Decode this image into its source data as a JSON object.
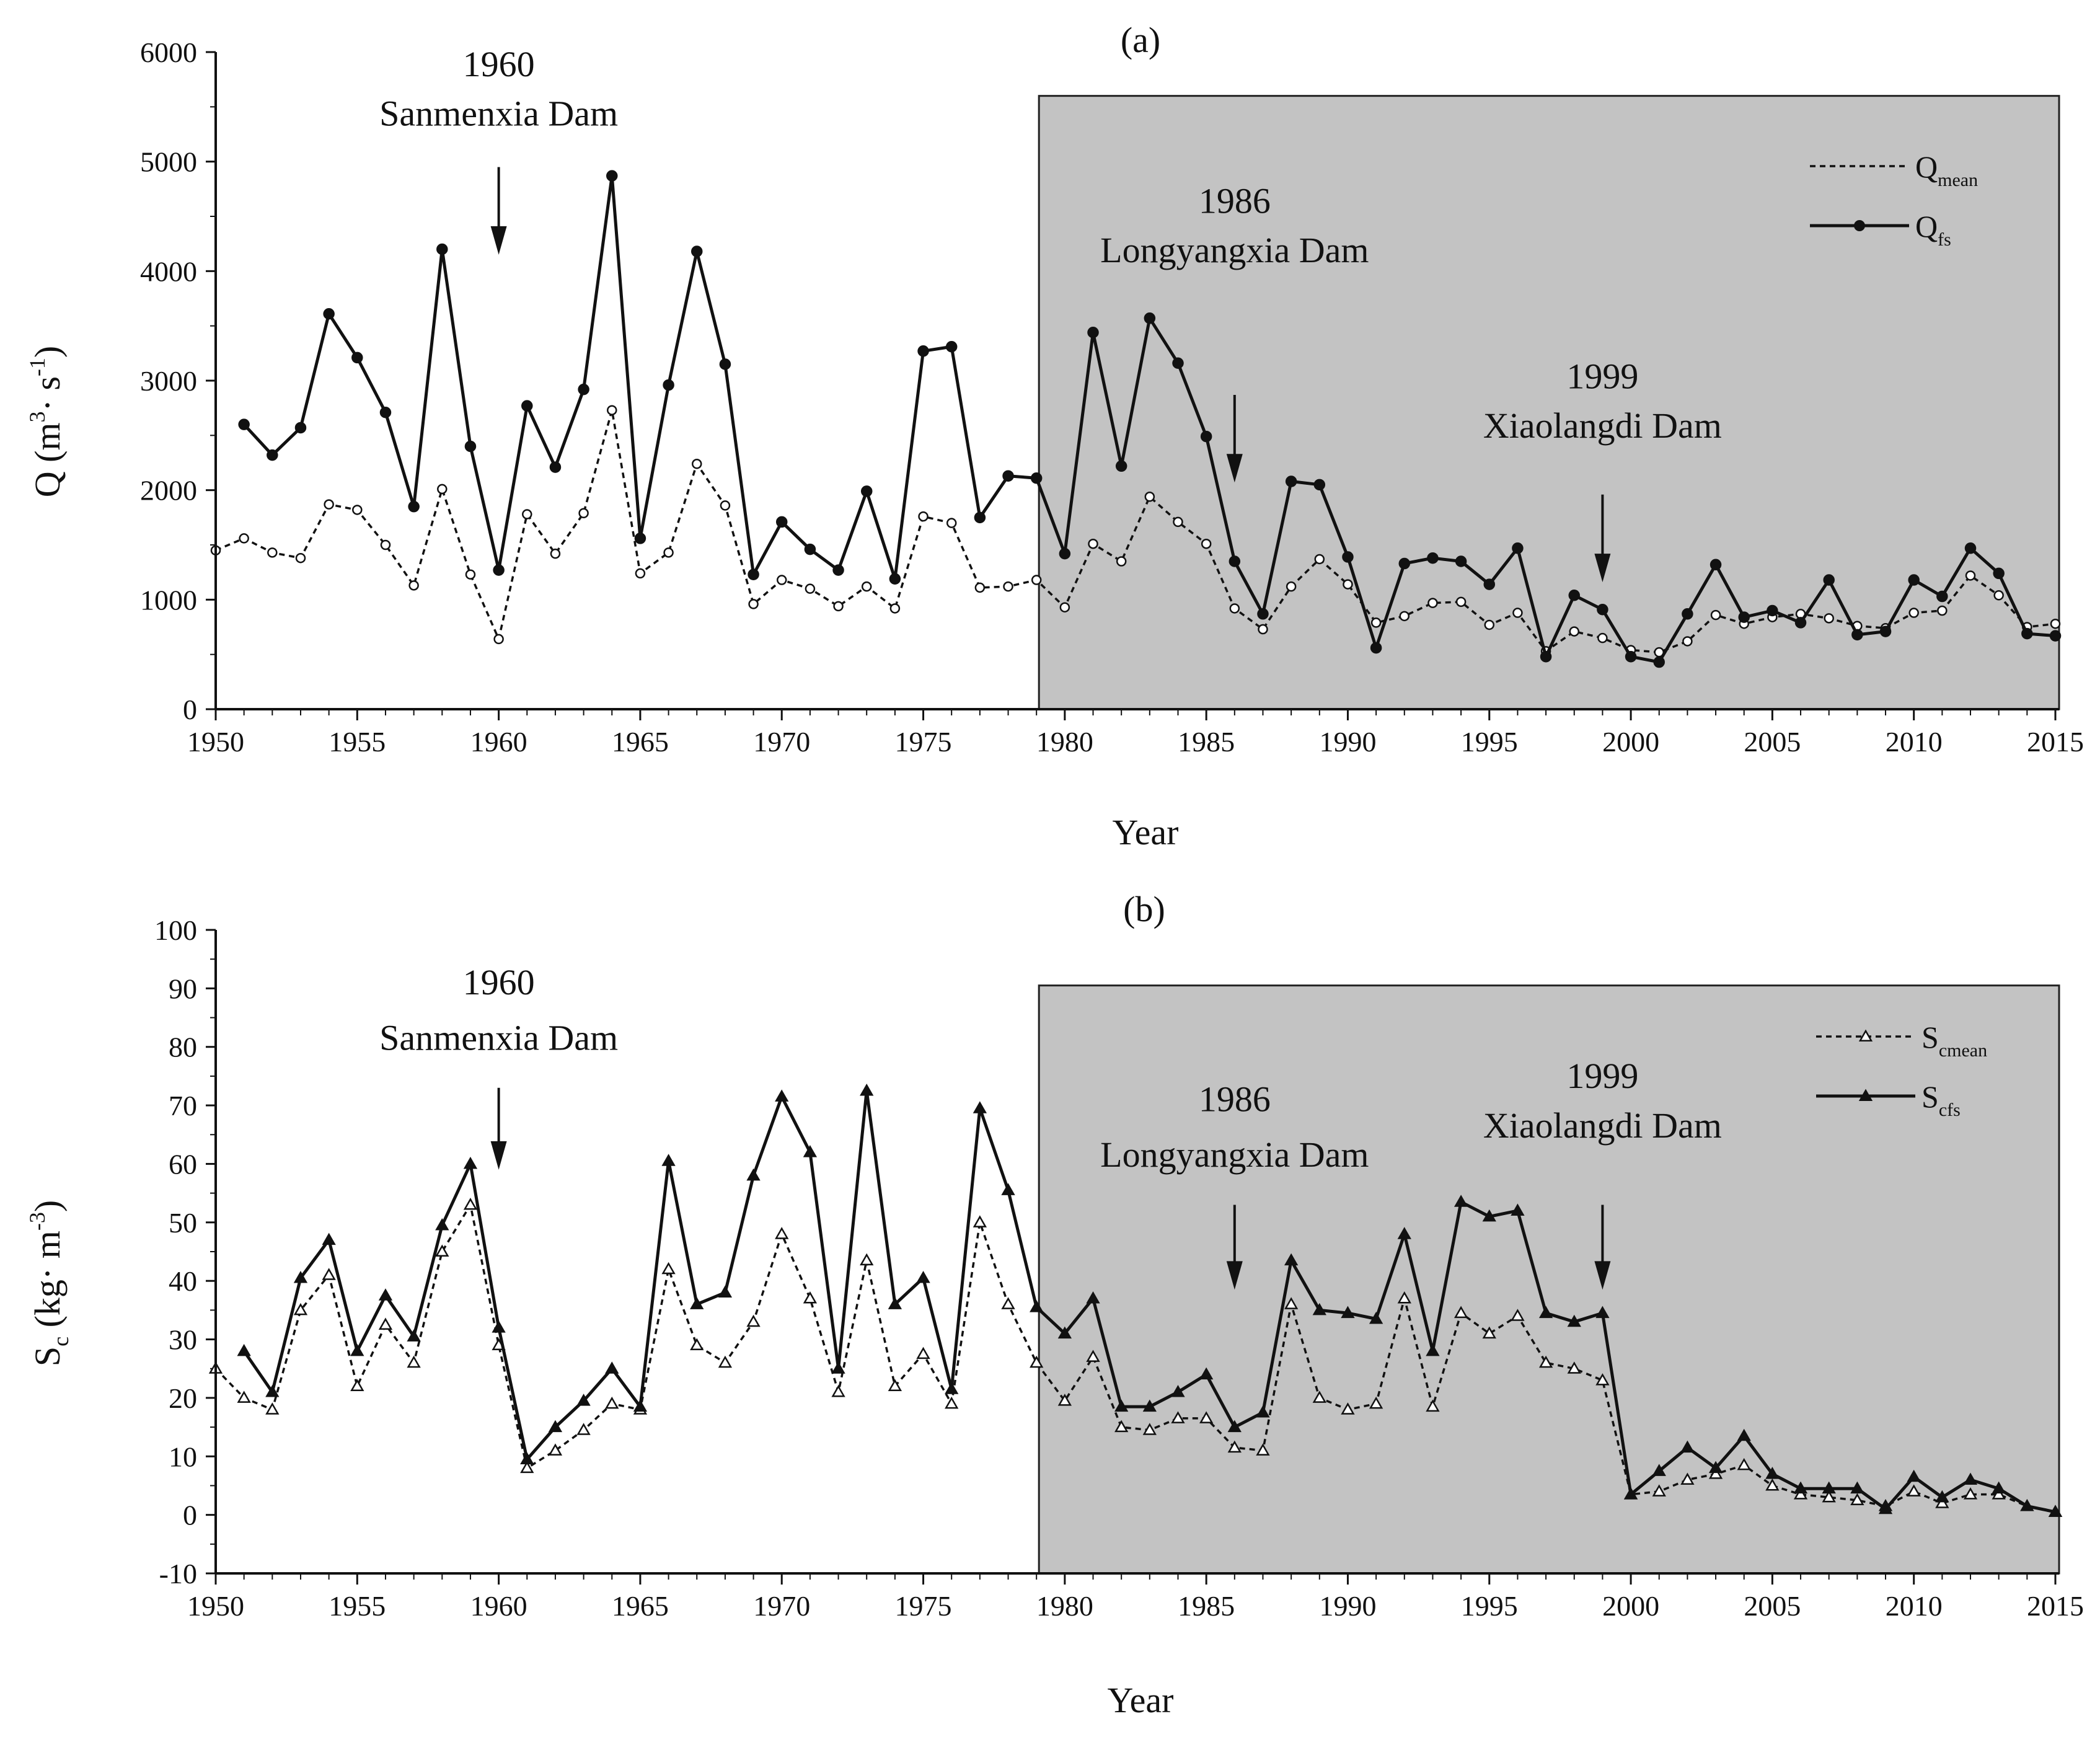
{
  "chart_data": [
    {
      "type": "line",
      "panel_label": "(a)",
      "title": "",
      "xlabel": "Year",
      "ylabel": "Q (m3· s-1)",
      "ylabel_parts": {
        "base": "Q (m",
        "sup1": "3",
        "mid": "· s",
        "sup2": "-1",
        "end": ")"
      },
      "xlim": [
        1950,
        2015
      ],
      "ylim": [
        0,
        6000
      ],
      "x_ticks": [
        1950,
        1955,
        1960,
        1965,
        1970,
        1975,
        1980,
        1985,
        1990,
        1995,
        2000,
        2005,
        2010,
        2015
      ],
      "y_ticks": [
        0,
        1000,
        2000,
        3000,
        4000,
        5000,
        6000
      ],
      "shaded_region": {
        "x_start": 1979,
        "x_end": 2015,
        "y_top": 5600
      },
      "legend": {
        "position": "top-right",
        "entries": [
          {
            "name": "Q",
            "sub": "mean",
            "style": "dotted-open-circle"
          },
          {
            "name": "Q",
            "sub": "fs",
            "style": "solid-filled-circle"
          }
        ]
      },
      "annotations": [
        {
          "year_label": "1960",
          "name": "Sanmenxia Dam",
          "x": 1960,
          "arrow_from": 4950,
          "arrow_to": 4150,
          "text_y1": 5780,
          "text_y2": 5330
        },
        {
          "year_label": "1986",
          "name": "Longyangxia Dam",
          "x": 1986,
          "arrow_from": 2870,
          "arrow_to": 2070,
          "text_y1": 4530,
          "text_y2": 4080
        },
        {
          "year_label": "1999",
          "name": "Xiaolangdi Dam",
          "x": 1999,
          "arrow_from": 1960,
          "arrow_to": 1160,
          "text_y1": 2930,
          "text_y2": 2480
        }
      ],
      "series": [
        {
          "name": "Qmean",
          "style": "dotted-open-circle",
          "x": [
            1950,
            1951,
            1952,
            1953,
            1954,
            1955,
            1956,
            1957,
            1958,
            1959,
            1960,
            1961,
            1962,
            1963,
            1964,
            1965,
            1966,
            1967,
            1968,
            1969,
            1970,
            1971,
            1972,
            1973,
            1974,
            1975,
            1976,
            1977,
            1978,
            1979,
            1980,
            1981,
            1982,
            1983,
            1984,
            1985,
            1986,
            1987,
            1988,
            1989,
            1990,
            1991,
            1992,
            1993,
            1994,
            1995,
            1996,
            1997,
            1998,
            1999,
            2000,
            2001,
            2002,
            2003,
            2004,
            2005,
            2006,
            2007,
            2008,
            2009,
            2010,
            2011,
            2012,
            2013,
            2014,
            2015
          ],
          "values": [
            1450,
            1560,
            1430,
            1380,
            1870,
            1820,
            1500,
            1130,
            2010,
            1230,
            640,
            1780,
            1420,
            1790,
            2730,
            1240,
            1430,
            2240,
            1860,
            960,
            1180,
            1100,
            940,
            1120,
            920,
            1760,
            1700,
            1110,
            1120,
            1180,
            930,
            1510,
            1350,
            1940,
            1710,
            1510,
            920,
            730,
            1120,
            1370,
            1140,
            790,
            850,
            970,
            980,
            770,
            880,
            530,
            710,
            650,
            540,
            520,
            620,
            860,
            780,
            840,
            870,
            830,
            760,
            740,
            880,
            900,
            1220,
            1040,
            750,
            780
          ]
        },
        {
          "name": "Qfs",
          "style": "solid-filled-circle",
          "x": [
            1951,
            1952,
            1953,
            1954,
            1955,
            1956,
            1957,
            1958,
            1959,
            1960,
            1961,
            1962,
            1963,
            1964,
            1965,
            1966,
            1967,
            1968,
            1969,
            1970,
            1971,
            1972,
            1973,
            1974,
            1975,
            1976,
            1977,
            1978,
            1979,
            1980,
            1981,
            1982,
            1983,
            1984,
            1985,
            1986,
            1987,
            1988,
            1989,
            1990,
            1991,
            1992,
            1993,
            1994,
            1995,
            1996,
            1997,
            1998,
            1999,
            2000,
            2001,
            2002,
            2003,
            2004,
            2005,
            2006,
            2007,
            2008,
            2009,
            2010,
            2011,
            2012,
            2013,
            2014,
            2015
          ],
          "values": [
            2600,
            2320,
            2570,
            3610,
            3210,
            2710,
            1850,
            4200,
            2400,
            1270,
            2770,
            2210,
            2920,
            4870,
            1560,
            2960,
            4180,
            3150,
            1230,
            1710,
            1460,
            1270,
            1990,
            1190,
            3270,
            3310,
            1750,
            2130,
            2110,
            1420,
            3440,
            2220,
            3570,
            3160,
            2490,
            1350,
            870,
            2080,
            2050,
            1390,
            560,
            1330,
            1380,
            1350,
            1140,
            1470,
            480,
            1040,
            910,
            480,
            430,
            870,
            1320,
            840,
            900,
            790,
            1180,
            680,
            710,
            1180,
            1030,
            1470,
            1240,
            690,
            670
          ]
        }
      ]
    },
    {
      "type": "line",
      "panel_label": "(b)",
      "title": "",
      "xlabel": "Year",
      "ylabel": "Sc (kg· m-3)",
      "ylabel_parts": {
        "base": "S",
        "sub": "c",
        "mid": " (kg· m",
        "sup": "-3",
        "end": ")"
      },
      "xlim": [
        1950,
        2015
      ],
      "ylim": [
        -10,
        100
      ],
      "x_ticks": [
        1950,
        1955,
        1960,
        1965,
        1970,
        1975,
        1980,
        1985,
        1990,
        1995,
        2000,
        2005,
        2010,
        2015
      ],
      "y_ticks": [
        -10,
        0,
        10,
        20,
        30,
        40,
        50,
        60,
        70,
        80,
        90,
        100
      ],
      "shaded_region": {
        "x_start": 1979,
        "x_end": 2015,
        "y_top": 90.5
      },
      "legend": {
        "position": "top-right",
        "entries": [
          {
            "name": "S",
            "sub": "cmean",
            "style": "dotted-open-triangle"
          },
          {
            "name": "S",
            "sub": "cfs",
            "style": "solid-filled-triangle"
          }
        ]
      },
      "annotations": [
        {
          "year_label": "1960",
          "name": "Sanmenxia Dam",
          "x": 1960,
          "arrow_from": 73,
          "arrow_to": 59,
          "text_y1": 89,
          "text_y2": 79.5
        },
        {
          "year_label": "1986",
          "name": "Longyangxia Dam",
          "x": 1986,
          "arrow_from": 53,
          "arrow_to": 38.5,
          "text_y1": 69,
          "text_y2": 59.5
        },
        {
          "year_label": "1999",
          "name": "Xiaolangdi Dam",
          "x": 1999,
          "arrow_from": 53,
          "arrow_to": 38.5,
          "text_y1": 73,
          "text_y2": 64.5
        }
      ],
      "series": [
        {
          "name": "Scmean",
          "style": "dotted-open-triangle",
          "x": [
            1950,
            1951,
            1952,
            1953,
            1954,
            1955,
            1956,
            1957,
            1958,
            1959,
            1960,
            1961,
            1962,
            1963,
            1964,
            1965,
            1966,
            1967,
            1968,
            1969,
            1970,
            1971,
            1972,
            1973,
            1974,
            1975,
            1976,
            1977,
            1978,
            1979,
            1980,
            1981,
            1982,
            1983,
            1984,
            1985,
            1986,
            1987,
            1988,
            1989,
            1990,
            1991,
            1992,
            1993,
            1994,
            1995,
            1996,
            1997,
            1998,
            1999,
            2000,
            2001,
            2002,
            2003,
            2004,
            2005,
            2006,
            2007,
            2008,
            2009,
            2010,
            2011,
            2012,
            2013,
            2014,
            2015
          ],
          "values": [
            25,
            20,
            18,
            35,
            41,
            22,
            32.5,
            26,
            45,
            53,
            29,
            8,
            11,
            14.5,
            19,
            18,
            42,
            29,
            26,
            33,
            48,
            37,
            21,
            43.5,
            22,
            27.5,
            19,
            50,
            36,
            26,
            19.5,
            27,
            15,
            14.5,
            16.5,
            16.5,
            11.5,
            11,
            36,
            20,
            18,
            19,
            37,
            18.5,
            34.5,
            31,
            34,
            26,
            25,
            23,
            3.5,
            4,
            6,
            7,
            8.5,
            5,
            3.5,
            3,
            2.5,
            1.5,
            4,
            2,
            3.5,
            3.5,
            1.5,
            0.5
          ]
        },
        {
          "name": "Scfs",
          "style": "solid-filled-triangle",
          "x": [
            1951,
            1952,
            1953,
            1954,
            1955,
            1956,
            1957,
            1958,
            1959,
            1960,
            1961,
            1962,
            1963,
            1964,
            1965,
            1966,
            1967,
            1968,
            1969,
            1970,
            1971,
            1972,
            1973,
            1974,
            1975,
            1976,
            1977,
            1978,
            1979,
            1980,
            1981,
            1982,
            1983,
            1984,
            1985,
            1986,
            1987,
            1988,
            1989,
            1990,
            1991,
            1992,
            1993,
            1994,
            1995,
            1996,
            1997,
            1998,
            1999,
            2000,
            2001,
            2002,
            2003,
            2004,
            2005,
            2006,
            2007,
            2008,
            2009,
            2010,
            2011,
            2012,
            2013,
            2014,
            2015
          ],
          "values": [
            28,
            21,
            40.5,
            47,
            28,
            37.5,
            30.5,
            49.5,
            60,
            32,
            9.5,
            15,
            19.5,
            25,
            18.5,
            60.5,
            36,
            38,
            58,
            71.5,
            62,
            25,
            72.5,
            36,
            40.5,
            21.5,
            69.5,
            55.5,
            35.5,
            31,
            37,
            18.5,
            18.5,
            21,
            24,
            15,
            17.5,
            43.5,
            35,
            34.5,
            33.5,
            48,
            28,
            53.5,
            51,
            52,
            34.5,
            33,
            34.5,
            3.5,
            7.5,
            11.5,
            8,
            13.5,
            7,
            4.5,
            4.5,
            4.5,
            1,
            6.5,
            3,
            6,
            4.5,
            1.5,
            0.5
          ]
        }
      ]
    }
  ]
}
